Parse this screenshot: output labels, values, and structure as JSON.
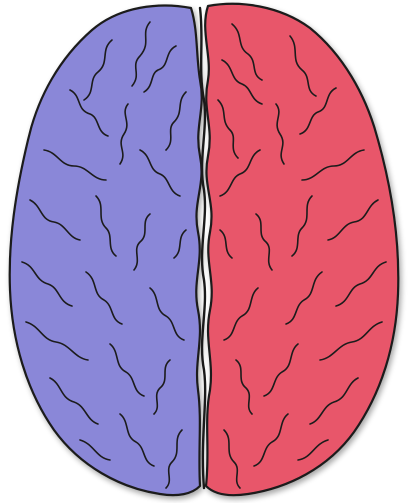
{
  "diagram": {
    "subject": "brain-top-view",
    "hemispheres": [
      {
        "side": "left",
        "fill_color": "#8a87d8"
      },
      {
        "side": "right",
        "fill_color": "#e8566a"
      }
    ],
    "outline_color": "#1a1a1a",
    "shadow_color": "#9a9a9a",
    "background": "#ffffff"
  }
}
